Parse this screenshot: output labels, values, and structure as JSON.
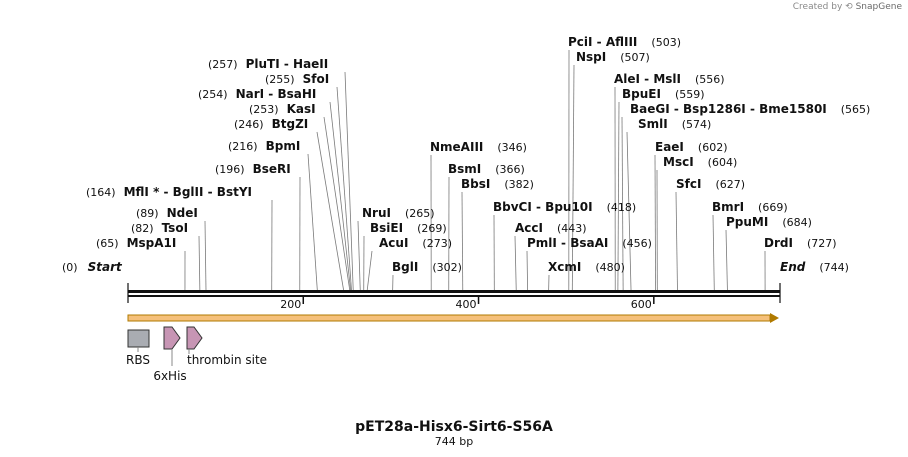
{
  "credit": {
    "prefix": "Created by",
    "brand": "SnapGene"
  },
  "title": "pET28a-Hisx6-Sirt6-S56A",
  "length_label": "744 bp",
  "sequence_length": 744,
  "axis_ticks": [
    {
      "bp": 200,
      "label": "200"
    },
    {
      "bp": 400,
      "label": "400"
    },
    {
      "bp": 600,
      "label": "600"
    }
  ],
  "sites": [
    {
      "id": "start",
      "text": "Start",
      "pos": "(0)",
      "bp": 0,
      "kind": "end"
    },
    {
      "id": "mspa1i",
      "text": "MspA1I",
      "pos": "(65)",
      "bp": 65
    },
    {
      "id": "tsoi",
      "text": "TsoI",
      "pos": "(82)",
      "bp": 82
    },
    {
      "id": "ndei",
      "text": "NdeI",
      "pos": "(89)",
      "bp": 89
    },
    {
      "id": "mfli",
      "text": "MflI * - BglII - BstYI",
      "pos": "(164)",
      "bp": 164
    },
    {
      "id": "bseri",
      "text": "BseRI",
      "pos": "(196)",
      "bp": 196
    },
    {
      "id": "bpmi",
      "text": "BpmI",
      "pos": "(216)",
      "bp": 216
    },
    {
      "id": "btgzi",
      "text": "BtgZI",
      "pos": "(246)",
      "bp": 246
    },
    {
      "id": "kasi",
      "text": "KasI",
      "pos": "(253)",
      "bp": 253
    },
    {
      "id": "nari",
      "text": "NarI - BsaHI",
      "pos": "(254)",
      "bp": 254
    },
    {
      "id": "sfoi",
      "text": "SfoI",
      "pos": "(255)",
      "bp": 255
    },
    {
      "id": "pluti",
      "text": "PluTI - HaeII",
      "pos": "(257)",
      "bp": 257
    },
    {
      "id": "nrui",
      "text": "NruI",
      "pos": "(265)",
      "bp": 265
    },
    {
      "id": "bsiei",
      "text": "BsiEI",
      "pos": "(269)",
      "bp": 269
    },
    {
      "id": "acui",
      "text": "AcuI",
      "pos": "(273)",
      "bp": 273
    },
    {
      "id": "bgli",
      "text": "BglI",
      "pos": "(302)",
      "bp": 302
    },
    {
      "id": "nmeaiii",
      "text": "NmeAIII",
      "pos": "(346)",
      "bp": 346
    },
    {
      "id": "bsmi",
      "text": "BsmI",
      "pos": "(366)",
      "bp": 366
    },
    {
      "id": "bbsi",
      "text": "BbsI",
      "pos": "(382)",
      "bp": 382
    },
    {
      "id": "bbvci",
      "text": "BbvCI - Bpu10I",
      "pos": "(418)",
      "bp": 418
    },
    {
      "id": "acci",
      "text": "AccI",
      "pos": "(443)",
      "bp": 443
    },
    {
      "id": "pmli",
      "text": "PmlI - BsaAI",
      "pos": "(456)",
      "bp": 456
    },
    {
      "id": "xcmi",
      "text": "XcmI",
      "pos": "(480)",
      "bp": 480
    },
    {
      "id": "pcii",
      "text": "PciI - AflIII",
      "pos": "(503)",
      "bp": 503
    },
    {
      "id": "nspi",
      "text": "NspI",
      "pos": "(507)",
      "bp": 507
    },
    {
      "id": "alei",
      "text": "AleI - MslI",
      "pos": "(556)",
      "bp": 556
    },
    {
      "id": "bpuei",
      "text": "BpuEI",
      "pos": "(559)",
      "bp": 559
    },
    {
      "id": "baegi",
      "text": "BaeGI - Bsp1286I - Bme1580I",
      "pos": "(565)",
      "bp": 565
    },
    {
      "id": "smli",
      "text": "SmlI",
      "pos": "(574)",
      "bp": 574
    },
    {
      "id": "eaei",
      "text": "EaeI",
      "pos": "(602)",
      "bp": 602
    },
    {
      "id": "msci",
      "text": "MscI",
      "pos": "(604)",
      "bp": 604
    },
    {
      "id": "sfci",
      "text": "SfcI",
      "pos": "(627)",
      "bp": 627
    },
    {
      "id": "bmri",
      "text": "BmrI",
      "pos": "(669)",
      "bp": 669
    },
    {
      "id": "ppumi",
      "text": "PpuMI",
      "pos": "(684)",
      "bp": 684
    },
    {
      "id": "drdi",
      "text": "DrdI",
      "pos": "(727)",
      "bp": 727
    },
    {
      "id": "end",
      "text": "End",
      "pos": "(744)",
      "bp": 744,
      "kind": "end"
    }
  ],
  "features": [
    {
      "id": "rbs",
      "label": "RBS",
      "shape": "box",
      "color": "#a9acb2"
    },
    {
      "id": "his",
      "label": "6xHis",
      "shape": "arrow",
      "color": "#c795b4"
    },
    {
      "id": "thrombin",
      "label": "thrombin site",
      "shape": "arrow",
      "color": "#c795b4"
    }
  ],
  "orf": {
    "color": "#f5c07a",
    "outline": "#b07a00"
  }
}
